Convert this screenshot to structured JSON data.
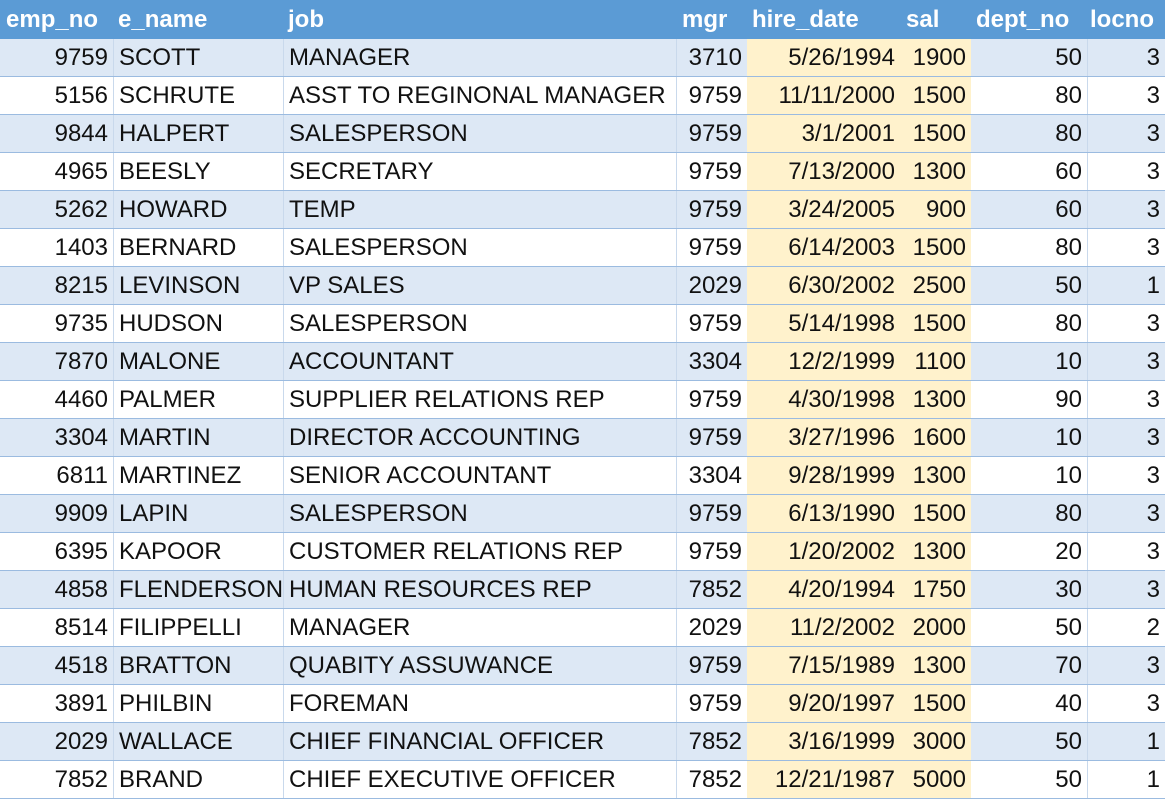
{
  "table": {
    "columns": [
      "emp_no",
      "e_name",
      "job",
      "mgr",
      "hire_date",
      "sal",
      "dept_no",
      "locno"
    ],
    "rows": [
      [
        "9759",
        "SCOTT",
        "MANAGER",
        "3710",
        "5/26/1994",
        "1900",
        "50",
        "3"
      ],
      [
        "5156",
        "SCHRUTE",
        "ASST TO REGINONAL MANAGER",
        "9759",
        "11/11/2000",
        "1500",
        "80",
        "3"
      ],
      [
        "9844",
        "HALPERT",
        "SALESPERSON",
        "9759",
        "3/1/2001",
        "1500",
        "80",
        "3"
      ],
      [
        "4965",
        "BEESLY",
        "SECRETARY",
        "9759",
        "7/13/2000",
        "1300",
        "60",
        "3"
      ],
      [
        "5262",
        "HOWARD",
        "TEMP",
        "9759",
        "3/24/2005",
        "900",
        "60",
        "3"
      ],
      [
        "1403",
        "BERNARD",
        "SALESPERSON",
        "9759",
        "6/14/2003",
        "1500",
        "80",
        "3"
      ],
      [
        "8215",
        "LEVINSON",
        "VP SALES",
        "2029",
        "6/30/2002",
        "2500",
        "50",
        "1"
      ],
      [
        "9735",
        "HUDSON",
        "SALESPERSON",
        "9759",
        "5/14/1998",
        "1500",
        "80",
        "3"
      ],
      [
        "7870",
        "MALONE",
        "ACCOUNTANT",
        "3304",
        "12/2/1999",
        "1100",
        "10",
        "3"
      ],
      [
        "4460",
        "PALMER",
        "SUPPLIER RELATIONS REP",
        "9759",
        "4/30/1998",
        "1300",
        "90",
        "3"
      ],
      [
        "3304",
        "MARTIN",
        "DIRECTOR ACCOUNTING",
        "9759",
        "3/27/1996",
        "1600",
        "10",
        "3"
      ],
      [
        "6811",
        "MARTINEZ",
        "SENIOR ACCOUNTANT",
        "3304",
        "9/28/1999",
        "1300",
        "10",
        "3"
      ],
      [
        "9909",
        "LAPIN",
        "SALESPERSON",
        "9759",
        "6/13/1990",
        "1500",
        "80",
        "3"
      ],
      [
        "6395",
        "KAPOOR",
        "CUSTOMER RELATIONS REP",
        "9759",
        "1/20/2002",
        "1300",
        "20",
        "3"
      ],
      [
        "4858",
        "FLENDERSON",
        "HUMAN RESOURCES REP",
        "7852",
        "4/20/1994",
        "1750",
        "30",
        "3"
      ],
      [
        "8514",
        "FILIPPELLI",
        "MANAGER",
        "2029",
        "11/2/2002",
        "2000",
        "50",
        "2"
      ],
      [
        "4518",
        "BRATTON",
        "QUABITY ASSUWANCE",
        "9759",
        "7/15/1989",
        "1300",
        "70",
        "3"
      ],
      [
        "3891",
        "PHILBIN",
        "FOREMAN",
        "9759",
        "9/20/1997",
        "1500",
        "40",
        "3"
      ],
      [
        "2029",
        "WALLACE",
        "CHIEF FINANCIAL OFFICER",
        "7852",
        "3/16/1999",
        "3000",
        "50",
        "1"
      ],
      [
        "7852",
        "BRAND",
        "CHIEF EXECUTIVE OFFICER",
        "7852",
        "12/21/1987",
        "5000",
        "50",
        "1"
      ]
    ]
  },
  "colors": {
    "header_fill": "#5b9bd5",
    "band_fill": "#dde8f5",
    "highlight_fill": "#fff2cc"
  }
}
